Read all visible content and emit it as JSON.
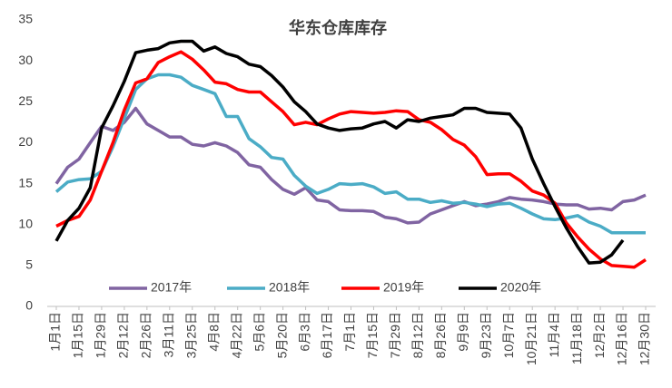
{
  "chart_data": {
    "type": "line",
    "title": "华东仓库库存",
    "categories": [
      "1月1日",
      null,
      "1月15日",
      null,
      "1月29日",
      null,
      "2月12日",
      null,
      "2月26日",
      null,
      "3月11日",
      null,
      "3月25日",
      null,
      "4月8日",
      null,
      "4月22日",
      null,
      "5月6日",
      null,
      "5月20日",
      null,
      "6月3日",
      null,
      "6月17日",
      null,
      "7月1日",
      null,
      "7月15日",
      null,
      "7月29日",
      null,
      "8月12日",
      null,
      "8月26日",
      null,
      "9月9日",
      null,
      "9月23日",
      null,
      "10月7日",
      null,
      "10月21日",
      null,
      "11月4日",
      null,
      "11月18日",
      null,
      "12月2日",
      null,
      "12月16日",
      null,
      "12月30日"
    ],
    "series": [
      {
        "name": "2017年",
        "color": "#8064a2",
        "values": [
          15,
          17,
          18,
          20,
          22,
          21.5,
          22.5,
          24.2,
          22.3,
          21.5,
          20.7,
          20.7,
          19.8,
          19.6,
          20,
          19.6,
          18.8,
          17.3,
          17,
          15.5,
          14.3,
          13.7,
          14.5,
          13,
          12.8,
          11.8,
          11.7,
          11.7,
          11.6,
          10.9,
          10.7,
          10.2,
          10.3,
          11.3,
          11.8,
          12.3,
          12.8,
          12.3,
          12.5,
          12.8,
          13.3,
          13.1,
          13,
          12.8,
          12.5,
          12.4,
          12.4,
          11.9,
          12,
          11.8,
          12.8,
          13,
          13.6
        ]
      },
      {
        "name": "2018年",
        "color": "#4bacc6",
        "values": [
          14,
          15.2,
          15.5,
          15.6,
          16.5,
          19.5,
          23,
          26.5,
          27.8,
          28.3,
          28.3,
          28,
          27,
          26.5,
          26,
          23.2,
          23.2,
          20.5,
          19.5,
          18.2,
          18,
          16,
          14.7,
          13.8,
          14.3,
          15,
          14.9,
          15,
          14.6,
          13.8,
          14,
          13.1,
          13.1,
          12.7,
          12.9,
          12.6,
          12.7,
          12.5,
          12.2,
          12.5,
          12.6,
          12,
          11.3,
          10.7,
          10.6,
          10.8,
          11.1,
          10.3,
          9.8,
          9,
          9,
          9,
          9
        ]
      },
      {
        "name": "2019年",
        "color": "#ff0000",
        "values": [
          9.8,
          10.5,
          11,
          13,
          16.5,
          20,
          24,
          27.3,
          27.8,
          29.8,
          30.5,
          31.1,
          30.2,
          28.9,
          27.4,
          27.2,
          26.5,
          26.2,
          26.2,
          25,
          23.8,
          22.2,
          22.5,
          22.2,
          22.9,
          23.5,
          23.8,
          23.7,
          23.6,
          23.7,
          23.9,
          23.8,
          22.8,
          22.5,
          21.6,
          20.4,
          19.7,
          18.3,
          16.1,
          16.2,
          16.2,
          15.3,
          14.1,
          13.6,
          12.6,
          10.2,
          8.5,
          7,
          5.8,
          5,
          4.9,
          4.8,
          5.7
        ]
      },
      {
        "name": "2020年",
        "color": "#000000",
        "values": [
          8,
          10.5,
          12,
          14.5,
          21.8,
          24.5,
          27.5,
          31,
          31.3,
          31.5,
          32.2,
          32.4,
          32.4,
          31.2,
          31.7,
          30.9,
          30.5,
          29.6,
          29.3,
          28.2,
          26.8,
          25,
          23.8,
          22.3,
          21.8,
          21.5,
          21.7,
          21.8,
          22.3,
          22.6,
          21.8,
          22.8,
          22.6,
          23,
          23.2,
          23.4,
          24.2,
          24.2,
          23.7,
          23.6,
          23.5,
          21.8,
          18,
          15,
          12.2,
          9.6,
          7.3,
          5.3,
          5.4,
          6.3,
          8.1,
          null,
          null
        ]
      }
    ],
    "ylim": [
      0,
      35
    ],
    "yticks": [
      0,
      5,
      10,
      15,
      20,
      25,
      30,
      35
    ]
  }
}
